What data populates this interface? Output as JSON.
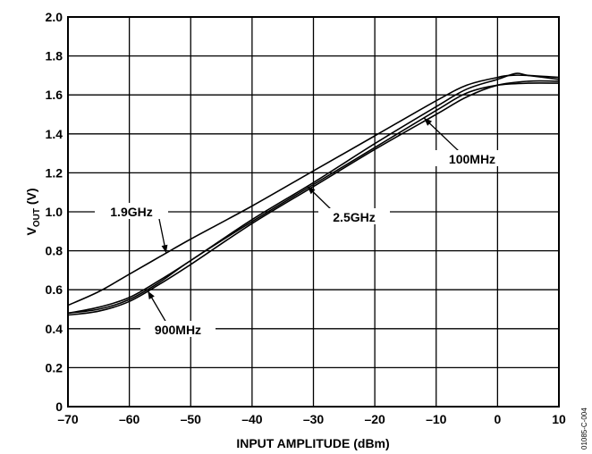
{
  "chart_data": {
    "type": "line",
    "xlabel": "INPUT AMPLITUDE (dBm)",
    "ylabel": {
      "main": "V",
      "sub": "OUT",
      "unit": " (V)"
    },
    "xlim": [
      -70,
      10
    ],
    "ylim": [
      0,
      2.0
    ],
    "x_ticks": [
      -70,
      -60,
      -50,
      -40,
      -30,
      -20,
      -10,
      0,
      10
    ],
    "x_tick_labels": [
      "–70",
      "–60",
      "–50",
      "–40",
      "–30",
      "–20",
      "–10",
      "0",
      "10"
    ],
    "y_ticks": [
      0,
      0.2,
      0.4,
      0.6,
      0.8,
      1.0,
      1.2,
      1.4,
      1.6,
      1.8,
      2.0
    ],
    "y_tick_labels": [
      "0",
      "0.2",
      "0.4",
      "0.6",
      "0.8",
      "1.0",
      "1.2",
      "1.4",
      "1.6",
      "1.8",
      "2.0"
    ],
    "grid": true,
    "series": [
      {
        "name": "100MHz",
        "x": [
          -70,
          -65,
          -60,
          -55,
          -50,
          -40,
          -30,
          -20,
          -10,
          -5,
          0,
          5,
          10
        ],
        "y": [
          0.48,
          0.5,
          0.55,
          0.64,
          0.75,
          0.95,
          1.14,
          1.33,
          1.52,
          1.61,
          1.65,
          1.66,
          1.66
        ]
      },
      {
        "name": "900MHz",
        "x": [
          -70,
          -65,
          -60,
          -55,
          -50,
          -40,
          -30,
          -20,
          -10,
          -5,
          0,
          5,
          10
        ],
        "y": [
          0.47,
          0.49,
          0.54,
          0.63,
          0.73,
          0.94,
          1.13,
          1.32,
          1.5,
          1.59,
          1.65,
          1.67,
          1.67
        ]
      },
      {
        "name": "1.9GHz",
        "x": [
          -70,
          -65,
          -60,
          -55,
          -50,
          -40,
          -30,
          -20,
          -10,
          -5,
          0,
          2,
          5,
          10
        ],
        "y": [
          0.52,
          0.59,
          0.68,
          0.77,
          0.86,
          1.03,
          1.21,
          1.39,
          1.57,
          1.65,
          1.69,
          1.7,
          1.7,
          1.69
        ]
      },
      {
        "name": "2.5GHz",
        "x": [
          -70,
          -65,
          -60,
          -55,
          -50,
          -40,
          -30,
          -20,
          -10,
          -5,
          0,
          3,
          5,
          10
        ],
        "y": [
          0.48,
          0.51,
          0.56,
          0.65,
          0.75,
          0.96,
          1.15,
          1.35,
          1.54,
          1.63,
          1.68,
          1.71,
          1.7,
          1.68
        ]
      }
    ],
    "annotations": [
      {
        "text": "1.9GHz",
        "series": "1.9GHz",
        "at_x": -54
      },
      {
        "text": "2.5GHz",
        "series": "2.5GHz",
        "at_x": -31
      },
      {
        "text": "100MHz",
        "series": "100MHz",
        "at_x": -12
      },
      {
        "text": "900MHz",
        "series": "900MHz",
        "at_x": -57
      }
    ],
    "figure_code": "01085-C-004"
  }
}
